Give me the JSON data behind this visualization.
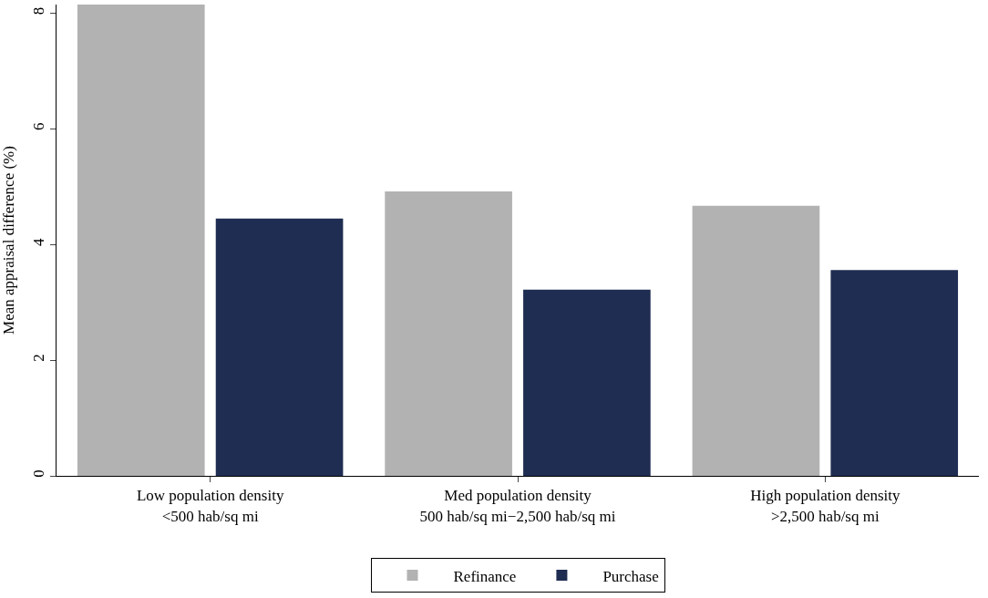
{
  "chart_data": {
    "type": "bar",
    "ylabel": "Mean appraisal difference (%)",
    "categories": [
      "Low population density\n<500 hab/sq mi",
      "Med population density\n500 hab/sq mi−2,500 hab/sq mi",
      "High population density\n>2,500 hab/sq mi"
    ],
    "series": [
      {
        "name": "Refinance",
        "color": "#b2b2b2",
        "values": [
          8.15,
          4.92,
          4.67
        ]
      },
      {
        "name": "Purchase",
        "color": "#1f2d52",
        "values": [
          4.45,
          3.22,
          3.56
        ]
      }
    ],
    "ylim": [
      0,
      8.15
    ],
    "yticks": [
      0,
      2,
      4,
      6,
      8
    ],
    "legend": "bottom"
  }
}
